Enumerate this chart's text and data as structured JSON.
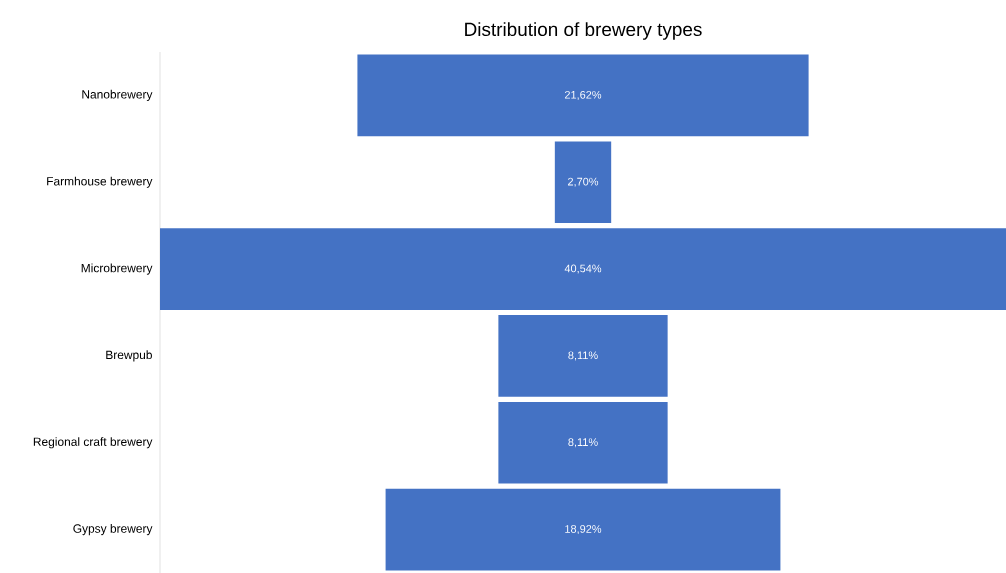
{
  "chart_data": {
    "type": "other",
    "title": "Distribution of brewery types",
    "categories": [
      "Nanobrewery",
      "Farmhouse brewery",
      "Microbrewery",
      "Brewpub",
      "Regional craft brewery",
      "Gypsy brewery"
    ],
    "values": [
      21.62,
      2.7,
      40.54,
      8.11,
      8.11,
      18.92
    ],
    "value_labels": [
      "21,62%",
      "2,70%",
      "40,54%",
      "8,11%",
      "8,11%",
      "18,92%"
    ],
    "color": "#4472c4"
  }
}
